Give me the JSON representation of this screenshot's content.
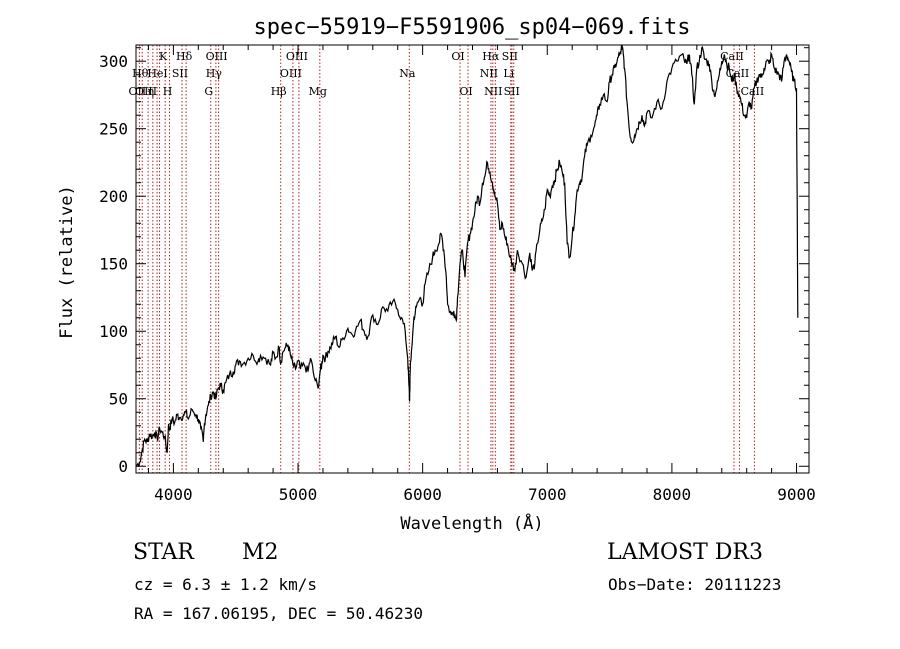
{
  "chart_data": {
    "type": "line",
    "title": "spec−55919−F5591906_sp04−069.fits",
    "xlabel": "Wavelength (Å)",
    "ylabel": "Flux (relative)",
    "xlim": [
      3700,
      9100
    ],
    "ylim": [
      -5,
      312
    ],
    "xticks": [
      4000,
      5000,
      6000,
      7000,
      8000,
      9000
    ],
    "yticks": [
      0,
      50,
      100,
      150,
      200,
      250,
      300
    ],
    "series": [
      {
        "name": "flux",
        "x": [
          3700,
          3730,
          3750,
          3770,
          3790,
          3810,
          3830,
          3850,
          3870,
          3890,
          3910,
          3930,
          3950,
          3960,
          3970,
          3990,
          4010,
          4030,
          4050,
          4080,
          4100,
          4120,
          4150,
          4180,
          4200,
          4220,
          4240,
          4250,
          4260,
          4280,
          4300,
          4320,
          4340,
          4360,
          4380,
          4400,
          4420,
          4450,
          4480,
          4500,
          4530,
          4560,
          4600,
          4640,
          4680,
          4700,
          4740,
          4780,
          4800,
          4820,
          4850,
          4860,
          4880,
          4900,
          4920,
          4940,
          4960,
          4980,
          5000,
          5020,
          5050,
          5080,
          5100,
          5130,
          5160,
          5180,
          5190,
          5200,
          5220,
          5240,
          5260,
          5280,
          5300,
          5330,
          5360,
          5400,
          5430,
          5460,
          5500,
          5530,
          5560,
          5600,
          5640,
          5680,
          5720,
          5760,
          5800,
          5830,
          5860,
          5880,
          5890,
          5895,
          5900,
          5910,
          5930,
          5950,
          5980,
          6000,
          6020,
          6050,
          6080,
          6100,
          6130,
          6150,
          6170,
          6190,
          6200,
          6230,
          6250,
          6270,
          6280,
          6300,
          6320,
          6340,
          6360,
          6380,
          6400,
          6420,
          6440,
          6460,
          6480,
          6500,
          6520,
          6540,
          6560,
          6570,
          6580,
          6600,
          6620,
          6640,
          6660,
          6680,
          6700,
          6720,
          6740,
          6760,
          6800,
          6830,
          6860,
          6880,
          6900,
          6920,
          6940,
          6960,
          6980,
          7000,
          7020,
          7040,
          7060,
          7080,
          7100,
          7120,
          7140,
          7160,
          7180,
          7200,
          7220,
          7240,
          7260,
          7280,
          7300,
          7320,
          7350,
          7380,
          7400,
          7420,
          7450,
          7480,
          7500,
          7520,
          7540,
          7560,
          7580,
          7600,
          7610,
          7620,
          7640,
          7660,
          7680,
          7700,
          7720,
          7740,
          7760,
          7780,
          7800,
          7840,
          7880,
          7920,
          7960,
          8000,
          8040,
          8080,
          8100,
          8120,
          8140,
          8160,
          8180,
          8200,
          8220,
          8240,
          8260,
          8280,
          8300,
          8320,
          8340,
          8360,
          8380,
          8400,
          8420,
          8440,
          8460,
          8480,
          8500,
          8520,
          8540,
          8560,
          8580,
          8600,
          8620,
          8640,
          8660,
          8680,
          8700,
          8720,
          8740,
          8760,
          8780,
          8800,
          8820,
          8840,
          8860,
          8880,
          8900,
          8920,
          8940,
          8960,
          8980,
          9000,
          9010
        ],
        "y": [
          0,
          3,
          12,
          20,
          18,
          24,
          22,
          25,
          20,
          28,
          25,
          22,
          10,
          30,
          28,
          35,
          32,
          38,
          36,
          38,
          40,
          35,
          42,
          38,
          35,
          28,
          18,
          32,
          38,
          45,
          52,
          55,
          50,
          58,
          60,
          56,
          62,
          68,
          70,
          75,
          78,
          76,
          80,
          82,
          78,
          82,
          80,
          75,
          84,
          80,
          88,
          76,
          85,
          88,
          90,
          82,
          75,
          72,
          78,
          72,
          75,
          70,
          80,
          66,
          58,
          72,
          75,
          82,
          80,
          85,
          88,
          92,
          96,
          88,
          95,
          102,
          98,
          100,
          108,
          100,
          96,
          112,
          105,
          118,
          115,
          122,
          116,
          110,
          100,
          80,
          60,
          48,
          70,
          85,
          110,
          118,
          125,
          120,
          135,
          145,
          155,
          160,
          165,
          172,
          160,
          140,
          120,
          112,
          115,
          108,
          125,
          150,
          160,
          140,
          165,
          172,
          180,
          190,
          200,
          195,
          210,
          215,
          225,
          218,
          210,
          205,
          200,
          195,
          175,
          180,
          170,
          165,
          155,
          150,
          145,
          160,
          150,
          140,
          158,
          145,
          150,
          165,
          175,
          182,
          190,
          205,
          200,
          208,
          212,
          220,
          225,
          218,
          210,
          165,
          155,
          170,
          185,
          205,
          210,
          215,
          230,
          238,
          245,
          252,
          260,
          268,
          275,
          270,
          285,
          290,
          295,
          300,
          305,
          310,
          305,
          295,
          270,
          248,
          240,
          245,
          250,
          255,
          260,
          252,
          262,
          258,
          270,
          265,
          285,
          295,
          300,
          305,
          300,
          298,
          305,
          290,
          268,
          295,
          300,
          310,
          302,
          300,
          298,
          285,
          275,
          280,
          290,
          300,
          305,
          298,
          295,
          285,
          290,
          280,
          275,
          268,
          260,
          258,
          270,
          265,
          280,
          285,
          290,
          288,
          295,
          300,
          298,
          305,
          295,
          292,
          290,
          285,
          300,
          305,
          300,
          292,
          285,
          280,
          110
        ]
      }
    ],
    "emission_lines": [
      {
        "wl": 3727,
        "label": "OII",
        "row": 2
      },
      {
        "wl": 3750,
        "label": "Hθ",
        "row": 1
      },
      {
        "wl": 3797,
        "label": "OIII",
        "row": 2
      },
      {
        "wl": 3835,
        "label": "η",
        "row": 2
      },
      {
        "wl": 3869,
        "label": "",
        "row": 0
      },
      {
        "wl": 3889,
        "label": "HeI",
        "row": 1
      },
      {
        "wl": 3934,
        "label": "K",
        "row": 0
      },
      {
        "wl": 3969,
        "label": "H",
        "row": 2
      },
      {
        "wl": 4069,
        "label": "SII",
        "row": 1
      },
      {
        "wl": 4102,
        "label": "Hδ",
        "row": 0
      },
      {
        "wl": 4300,
        "label": "G",
        "row": 2
      },
      {
        "wl": 4341,
        "label": "Hγ",
        "row": 1
      },
      {
        "wl": 4363,
        "label": "OIII",
        "row": 0
      },
      {
        "wl": 4861,
        "label": "Hβ",
        "row": 2
      },
      {
        "wl": 4959,
        "label": "OIII",
        "row": 1
      },
      {
        "wl": 5007,
        "label": "OIII",
        "row": 0
      },
      {
        "wl": 5175,
        "label": "Mg",
        "row": 2
      },
      {
        "wl": 5893,
        "label": "Na",
        "row": 1
      },
      {
        "wl": 6300,
        "label": "OI",
        "row": 0
      },
      {
        "wl": 6364,
        "label": "OI",
        "row": 2
      },
      {
        "wl": 6548,
        "label": "NII",
        "row": 1
      },
      {
        "wl": 6563,
        "label": "Hα",
        "row": 0
      },
      {
        "wl": 6583,
        "label": "NII",
        "row": 2
      },
      {
        "wl": 6707,
        "label": "Li",
        "row": 1
      },
      {
        "wl": 6716,
        "label": "SII",
        "row": 0
      },
      {
        "wl": 6731,
        "label": "SII",
        "row": 2
      },
      {
        "wl": 8498,
        "label": "CaII",
        "row": 0
      },
      {
        "wl": 8542,
        "label": "CaII",
        "row": 1
      },
      {
        "wl": 8662,
        "label": "CaII",
        "row": 2
      }
    ]
  },
  "info": {
    "class": "STAR",
    "subclass": "M2",
    "survey": "LAMOST DR3",
    "cz": "cz = 6.3 ± 1.2 km/s",
    "obs_date": "Obs−Date: 20111223",
    "coords": "RA = 167.06195, DEC =  50.46230"
  },
  "colors": {
    "spectrum": "#000000",
    "line_marker": "#b22222"
  }
}
